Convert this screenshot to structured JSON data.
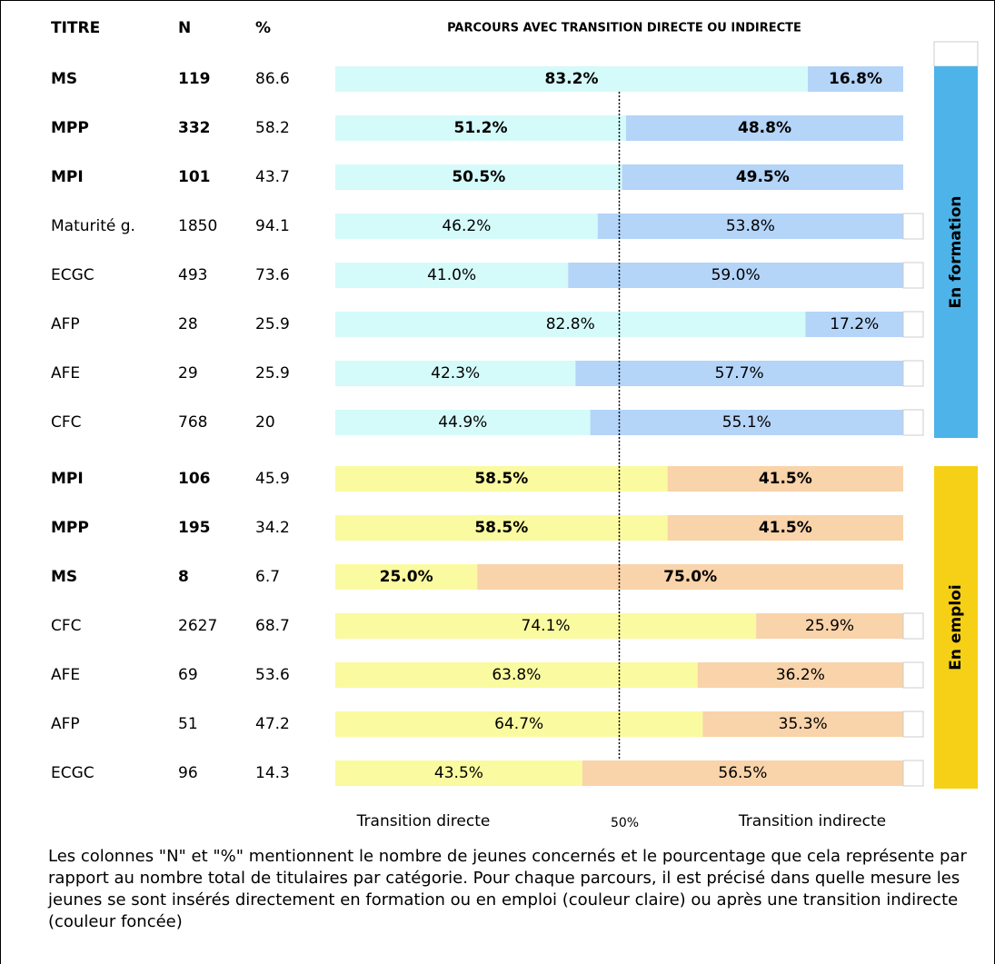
{
  "chart_data": {
    "type": "stacked-bar",
    "header": {
      "titre": "TITRE",
      "n": "N",
      "pct": "%",
      "parcours": "PARCOURS AVEC TRANSITION DIRECTE OU INDIRECTE"
    },
    "xlim": [
      0,
      100
    ],
    "xticks": [
      {
        "value": 50,
        "label": "50%"
      }
    ],
    "legend": {
      "direct": "Transition directe",
      "indirect": "Transition indirecte"
    },
    "groups": [
      {
        "label": "En formation",
        "color": "#4db3e8",
        "direct_color": "#d5fafa",
        "indirect_color": "#b4d4f8",
        "rows": [
          {
            "label": "MS",
            "n": 119,
            "pct": 86.6,
            "bold": true,
            "values": [
              83.2,
              16.8
            ],
            "value_labels": [
              "83.2%",
              "16.8%"
            ]
          },
          {
            "label": "MPP",
            "n": 332,
            "pct": 58.2,
            "bold": true,
            "values": [
              51.2,
              48.8
            ],
            "value_labels": [
              "51.2%",
              "48.8%"
            ]
          },
          {
            "label": "MPI",
            "n": 101,
            "pct": 43.7,
            "bold": true,
            "values": [
              50.5,
              49.5
            ],
            "value_labels": [
              "50.5%",
              "49.5%"
            ]
          },
          {
            "label": "Maturité g.",
            "n": 1850,
            "pct": 94.1,
            "bold": false,
            "values": [
              46.2,
              53.8
            ],
            "value_labels": [
              "46.2%",
              "53.8%"
            ]
          },
          {
            "label": "ECGC",
            "n": 493,
            "pct": 73.6,
            "bold": false,
            "values": [
              41.0,
              59.0
            ],
            "value_labels": [
              "41.0%",
              "59.0%"
            ]
          },
          {
            "label": "AFP",
            "n": 28,
            "pct": 25.9,
            "bold": false,
            "values": [
              82.8,
              17.2
            ],
            "value_labels": [
              "82.8%",
              "17.2%"
            ]
          },
          {
            "label": "AFE",
            "n": 29,
            "pct": 25.9,
            "bold": false,
            "values": [
              42.3,
              57.7
            ],
            "value_labels": [
              "42.3%",
              "57.7%"
            ]
          },
          {
            "label": "CFC",
            "n": 768,
            "pct": 20,
            "bold": false,
            "values": [
              44.9,
              55.1
            ],
            "value_labels": [
              "44.9%",
              "55.1%"
            ]
          }
        ]
      },
      {
        "label": "En emploi",
        "color": "#f5d016",
        "direct_color": "#fafaa0",
        "indirect_color": "#f9d3aa",
        "rows": [
          {
            "label": "MPI",
            "n": 106,
            "pct": 45.9,
            "bold": true,
            "values": [
              58.5,
              41.5
            ],
            "value_labels": [
              "58.5%",
              "41.5%"
            ]
          },
          {
            "label": "MPP",
            "n": 195,
            "pct": 34.2,
            "bold": true,
            "values": [
              58.5,
              41.5
            ],
            "value_labels": [
              "58.5%",
              "41.5%"
            ]
          },
          {
            "label": "MS",
            "n": 8,
            "pct": 6.7,
            "bold": true,
            "values": [
              25.0,
              75.0
            ],
            "value_labels": [
              "25.0%",
              "75.0%"
            ]
          },
          {
            "label": "CFC",
            "n": 2627,
            "pct": 68.7,
            "bold": false,
            "values": [
              74.1,
              25.9
            ],
            "value_labels": [
              "74.1%",
              "25.9%"
            ]
          },
          {
            "label": "AFE",
            "n": 69,
            "pct": 53.6,
            "bold": false,
            "values": [
              63.8,
              36.2
            ],
            "value_labels": [
              "63.8%",
              "36.2%"
            ]
          },
          {
            "label": "AFP",
            "n": 51,
            "pct": 47.2,
            "bold": false,
            "values": [
              64.7,
              35.3
            ],
            "value_labels": [
              "64.7%",
              "35.3%"
            ]
          },
          {
            "label": "ECGC",
            "n": 96,
            "pct": 14.3,
            "bold": false,
            "values": [
              43.5,
              56.5
            ],
            "value_labels": [
              "43.5%",
              "56.5%"
            ]
          }
        ]
      }
    ],
    "note": "Les colonnes \"N\" et \"%\" mentionnent le nombre de jeunes concernés et le pourcentage que cela représente par rapport au nombre total de titulaires par catégorie. Pour chaque parcours, il est précisé dans quelle mesure les jeunes se sont insérés directement en formation ou en emploi (couleur claire) ou après une transition indirecte (couleur foncée)"
  }
}
